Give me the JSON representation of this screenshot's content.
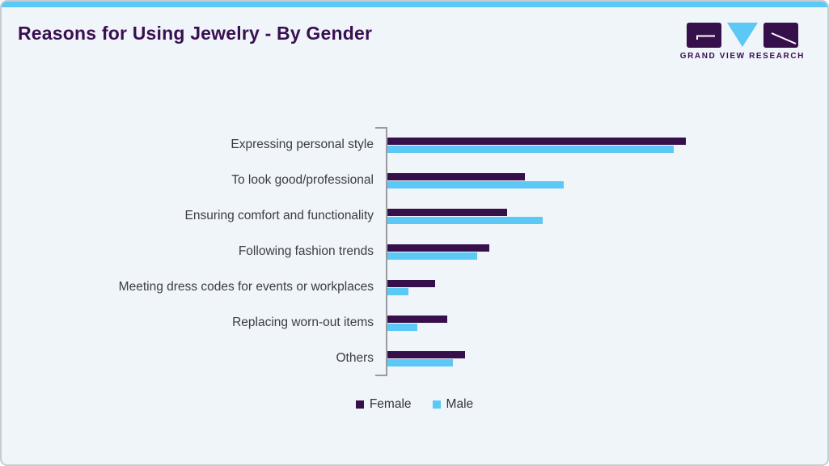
{
  "header": {
    "title": "Reasons for Using Jewelry - By Gender",
    "logo_text": "GRAND VIEW RESEARCH"
  },
  "colors": {
    "accent_blue": "#5BC8F5",
    "female_bar": "#36104A",
    "male_bar": "#5BC8F5",
    "title_purple": "#3A0F52",
    "card_background": "#F0F5F9",
    "card_border": "#C7CCD2",
    "axis_gray": "#9A9AA0",
    "label_text": "#3C3C46"
  },
  "chart_data": {
    "type": "bar",
    "orientation": "horizontal",
    "title": "Reasons for Using Jewelry - By Gender",
    "categories": [
      "Expressing personal style",
      "To look good/professional",
      "Ensuring comfort and functionality",
      "Following fashion trends",
      "Meeting dress codes for events or workplaces",
      "Replacing worn-out items",
      "Others"
    ],
    "series": [
      {
        "name": "Female",
        "color": "#36104A",
        "values": [
          100,
          46,
          40,
          34,
          16,
          20,
          26
        ]
      },
      {
        "name": "Male",
        "color": "#5BC8F5",
        "values": [
          96,
          59,
          52,
          30,
          7,
          10,
          22
        ]
      }
    ],
    "value_scale": "relative bar length, longest bar (Female / Expressing personal style) = 100; no numeric axis labels shown in chart",
    "xlim": [
      0,
      100
    ],
    "grid": false,
    "axis_style": "bracket at category axis only",
    "legend_position": "bottom"
  }
}
